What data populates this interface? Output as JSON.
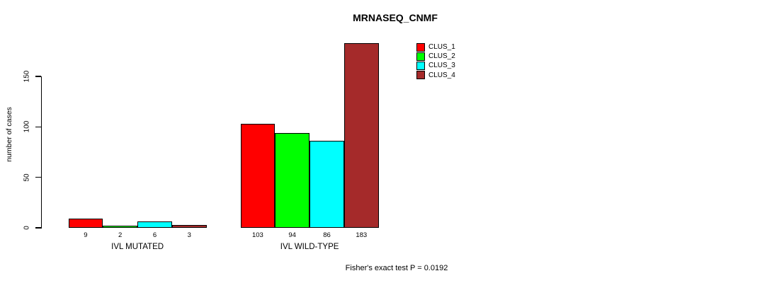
{
  "title": "MRNASEQ_CNMF",
  "footer": "Fisher's exact test P = 0.0192",
  "chart_data": {
    "type": "bar",
    "title": "MRNASEQ_CNMF",
    "xlabel": "",
    "ylabel": "number of cases",
    "ylim": [
      0,
      185
    ],
    "yticks": [
      0,
      50,
      100,
      150
    ],
    "grid": false,
    "legend_position": "top-right",
    "categories": [
      "IVL MUTATED",
      "IVL WILD-TYPE"
    ],
    "series": [
      {
        "name": "CLUS_1",
        "color": "#FF0000",
        "values": [
          9,
          103
        ]
      },
      {
        "name": "CLUS_2",
        "color": "#00FF00",
        "values": [
          2,
          94
        ]
      },
      {
        "name": "CLUS_3",
        "color": "#00FFFF",
        "values": [
          6,
          86
        ]
      },
      {
        "name": "CLUS_4",
        "color": "#A52A2A",
        "values": [
          3,
          183
        ]
      }
    ],
    "bar_value_labels": {
      "IVL MUTATED": [
        "9",
        "2",
        "6",
        "3"
      ],
      "IVL WILD-TYPE": [
        "103",
        "94",
        "86",
        "183"
      ]
    },
    "annotation": "Fisher's exact test P = 0.0192"
  }
}
